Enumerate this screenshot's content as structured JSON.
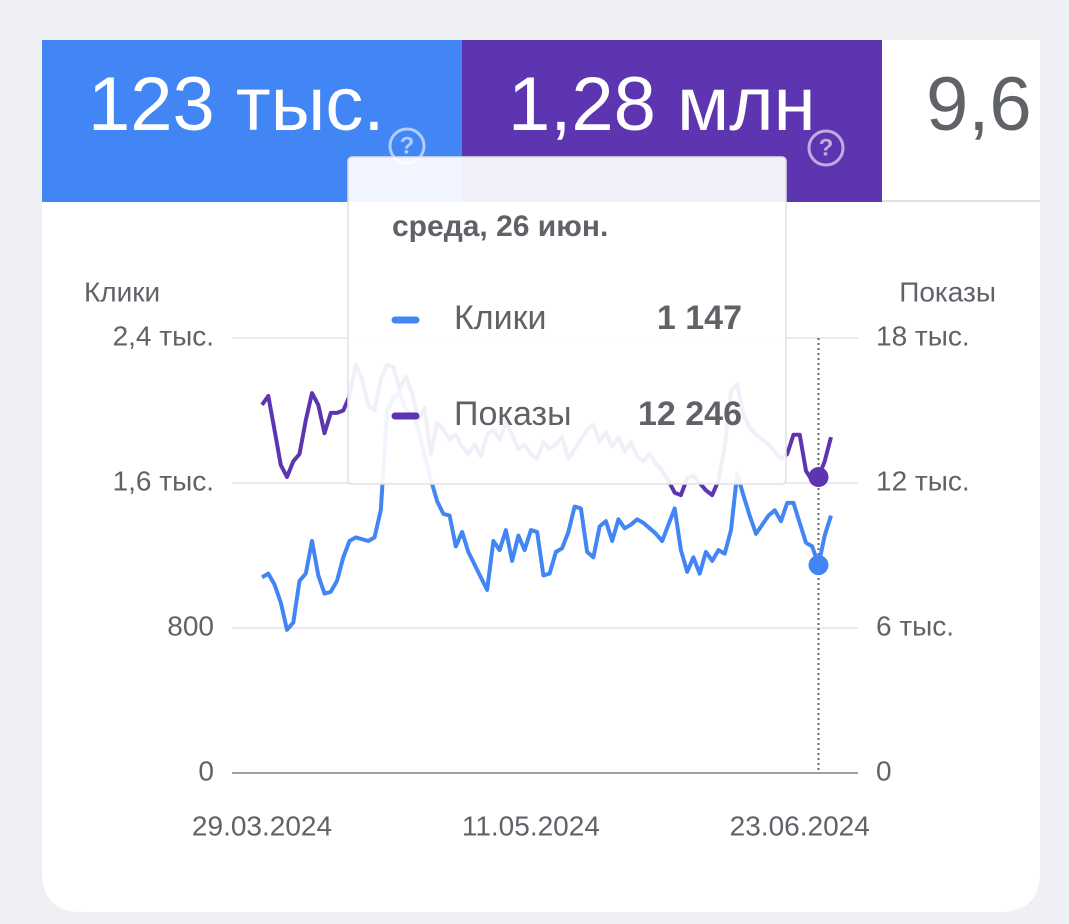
{
  "metrics": [
    {
      "value": "123 тыс."
    },
    {
      "value": "1,28 млн"
    },
    {
      "value": "9,6"
    }
  ],
  "chart_data": {
    "type": "line",
    "y_label": "Клики",
    "y2_label": "Показы",
    "categories": [
      "29.03.2024",
      null,
      null,
      null,
      null,
      null,
      null,
      null,
      null,
      null,
      null,
      null,
      null,
      null,
      null,
      null,
      null,
      null,
      null,
      null,
      null,
      null,
      null,
      null,
      null,
      null,
      null,
      null,
      null,
      null,
      null,
      null,
      null,
      null,
      null,
      null,
      null,
      null,
      null,
      null,
      null,
      null,
      null,
      "11.05.2024",
      null,
      null,
      null,
      null,
      null,
      null,
      null,
      null,
      null,
      null,
      null,
      null,
      null,
      null,
      null,
      null,
      null,
      null,
      null,
      null,
      null,
      null,
      null,
      null,
      null,
      null,
      null,
      null,
      null,
      null,
      null,
      null,
      null,
      null,
      null,
      null,
      null,
      null,
      null,
      null,
      null,
      null,
      "23.06.2024",
      null,
      null,
      null,
      null,
      null
    ],
    "series": [
      {
        "name": "Клики",
        "color": "#4285f4",
        "values": [
          1080,
          1100,
          1040,
          940,
          790,
          830,
          1060,
          1100,
          1280,
          1090,
          990,
          1000,
          1060,
          1190,
          1280,
          1300,
          1290,
          1280,
          1300,
          1450,
          2000,
          2070,
          2100,
          2000,
          1980,
          1900,
          1750,
          1620,
          1500,
          1430,
          1420,
          1250,
          1330,
          1220,
          1150,
          1080,
          1010,
          1280,
          1230,
          1340,
          1170,
          1310,
          1230,
          1340,
          1330,
          1090,
          1100,
          1220,
          1240,
          1330,
          1470,
          1460,
          1220,
          1190,
          1360,
          1390,
          1280,
          1400,
          1350,
          1370,
          1400,
          1380,
          1350,
          1320,
          1280,
          1370,
          1460,
          1230,
          1110,
          1190,
          1100,
          1220,
          1170,
          1230,
          1210,
          1340,
          1650,
          1530,
          1420,
          1320,
          1370,
          1420,
          1450,
          1390,
          1490,
          1490,
          1380,
          1270,
          1250,
          1147,
          1310,
          1420
        ]
      },
      {
        "name": "Показы",
        "color": "#5e35b1",
        "axis": "y2",
        "values": [
          15230,
          15600,
          14200,
          12740,
          12250,
          12900,
          13200,
          14600,
          15720,
          15230,
          14060,
          14900,
          14900,
          15000,
          15600,
          16900,
          16300,
          15200,
          15000,
          16300,
          16900,
          16800,
          15900,
          16400,
          15700,
          14650,
          15100,
          13200,
          14500,
          14200,
          13800,
          14000,
          13500,
          13200,
          13600,
          13100,
          14000,
          14200,
          13800,
          14500,
          14000,
          13400,
          13600,
          13200,
          13000,
          13700,
          13400,
          13600,
          13900,
          13000,
          13400,
          13800,
          14200,
          14400,
          13700,
          14100,
          13500,
          13900,
          13300,
          13700,
          13100,
          12900,
          13200,
          12800,
          12500,
          12100,
          11600,
          11500,
          12200,
          12300,
          12000,
          11700,
          11500,
          12100,
          13500,
          15800,
          16100,
          14800,
          14300,
          14000,
          13800,
          13600,
          13300,
          13000,
          13200,
          14000,
          14000,
          12500,
          12100,
          12246,
          12900,
          13900
        ]
      }
    ],
    "ylim": [
      0,
      2400
    ],
    "yticks": [
      0,
      800,
      {
        "value": 1600,
        "label": "1,6 тыс."
      },
      {
        "value": 2400,
        "label": "2,4 тыс."
      }
    ],
    "y2lim": [
      0,
      18000
    ],
    "y2ticks": [
      0,
      {
        "value": 6000,
        "label": "6 тыс."
      },
      {
        "value": 12000,
        "label": "12 тыс."
      },
      {
        "value": 18000,
        "label": "18 тыс."
      }
    ],
    "grid": true,
    "tooltip": {
      "title": "среда, 26 июн.",
      "values": [
        1147,
        12246
      ],
      "value_labels": [
        "1 147",
        "12 246"
      ]
    }
  }
}
